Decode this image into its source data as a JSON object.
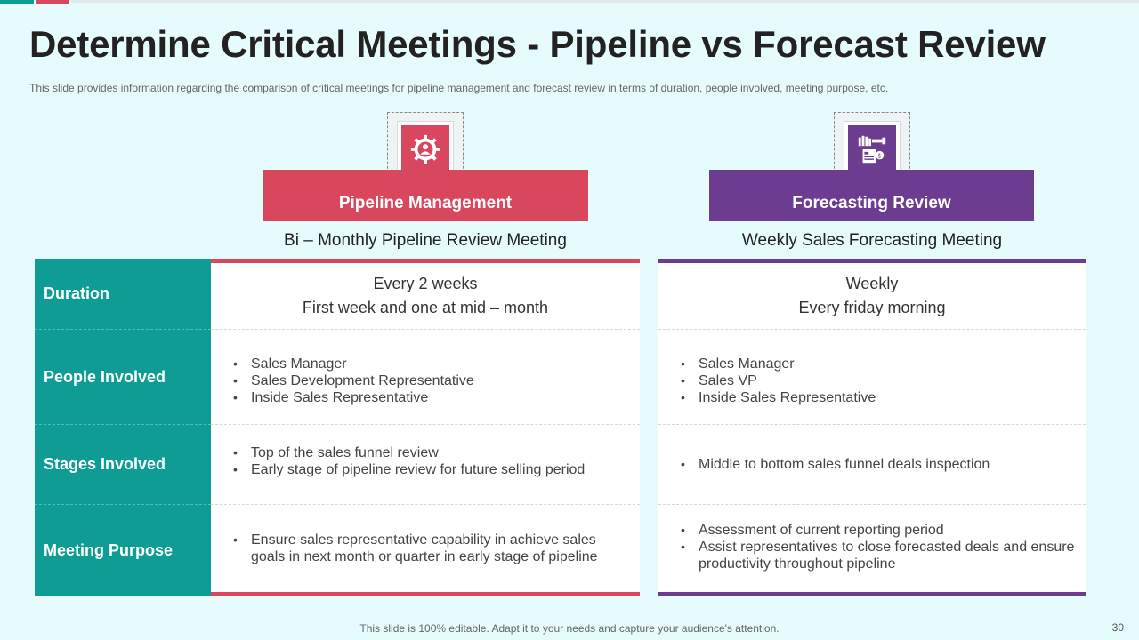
{
  "title": "Determine Critical Meetings - Pipeline vs Forecast Review",
  "subtitle": "This slide provides information regarding the comparison of critical meetings for pipeline management and forecast review in terms of duration, people involved, meeting purpose, etc.",
  "accent_colors": {
    "teal": "#0e9c95",
    "pink": "#d9475f",
    "purple": "#6b3c8f"
  },
  "row_labels": [
    "Duration",
    "People Involved",
    "Stages Involved",
    "Meeting Purpose"
  ],
  "columns": [
    {
      "header": "Pipeline Management",
      "icon": "gear-person-icon",
      "meeting": "Bi – Monthly Pipeline Review Meeting",
      "duration": [
        "Every 2 weeks",
        "First week and one at mid – month"
      ],
      "people": [
        "Sales Manager",
        "Sales Development Representative",
        "Inside Sales Representative"
      ],
      "stages": [
        "Top of the sales funnel review",
        "Early stage of pipeline review for future selling period"
      ],
      "purpose": [
        "Ensure sales representative capability in achieve sales goals in next month or quarter in early stage of pipeline"
      ]
    },
    {
      "header": "Forecasting Review",
      "icon": "forecast-report-icon",
      "meeting": "Weekly Sales Forecasting Meeting",
      "duration": [
        "Weekly",
        "Every friday morning"
      ],
      "people": [
        "Sales Manager",
        "Sales VP",
        "Inside Sales Representative"
      ],
      "stages": [
        "Middle to bottom sales funnel deals inspection"
      ],
      "purpose": [
        "Assessment of current reporting period",
        "Assist representatives to close forecasted deals and ensure productivity throughout pipeline"
      ]
    }
  ],
  "footer": "This slide is 100% editable. Adapt it to your needs and capture your audience's attention.",
  "page_number": "30"
}
